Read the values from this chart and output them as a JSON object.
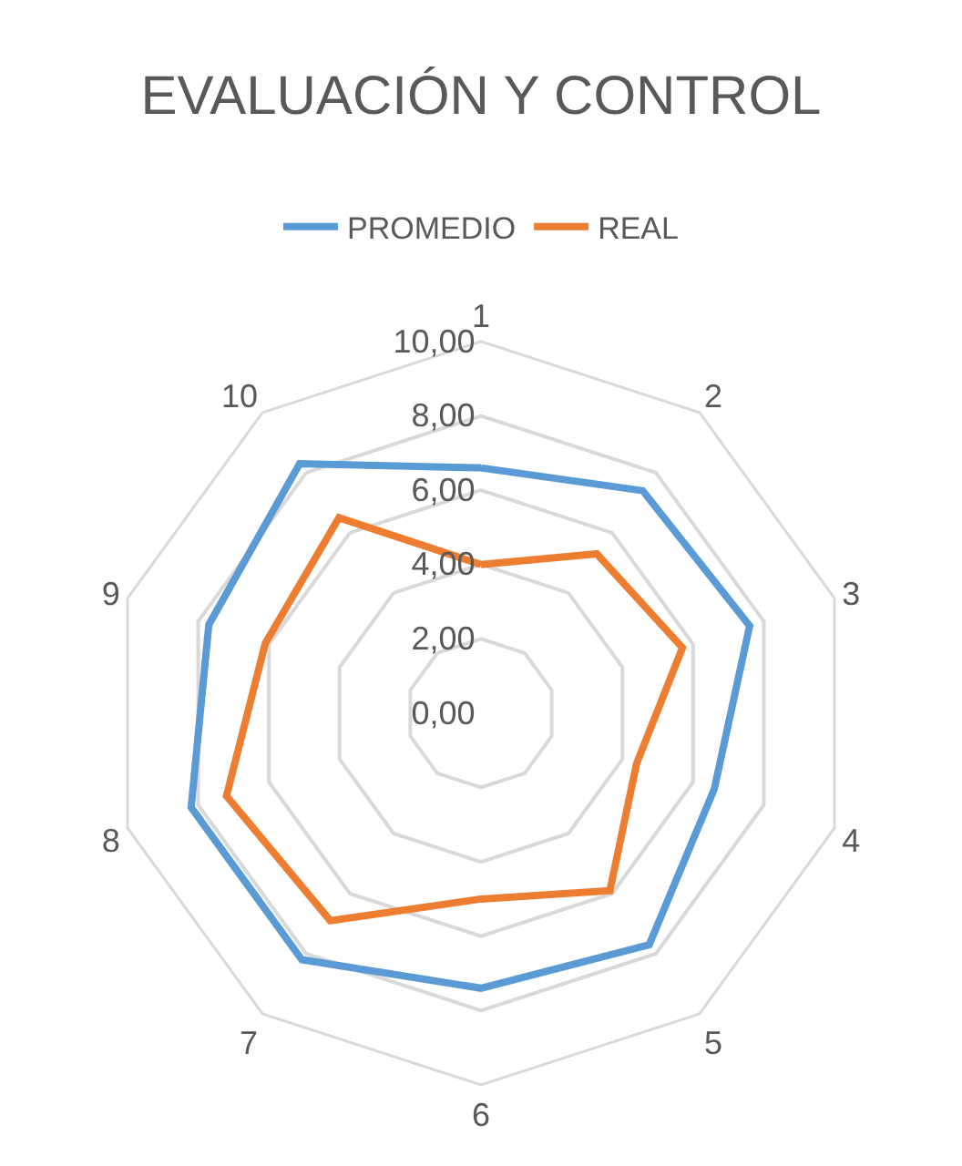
{
  "chart_data": {
    "type": "radar",
    "title": "EVALUACIÓN Y CONTROL",
    "categories": [
      "1",
      "2",
      "3",
      "4",
      "5",
      "6",
      "7",
      "8",
      "9",
      "10"
    ],
    "series": [
      {
        "name": "PROMEDIO",
        "color": "#5b9bd5",
        "values": [
          6.6,
          7.4,
          7.6,
          6.6,
          7.7,
          7.4,
          8.2,
          8.2,
          7.7,
          8.3
        ]
      },
      {
        "name": "REAL",
        "color": "#ed7d31",
        "values": [
          4.0,
          5.3,
          5.7,
          4.4,
          5.9,
          5.0,
          6.9,
          7.2,
          6.1,
          6.5
        ]
      }
    ],
    "ylim": [
      0,
      10
    ],
    "yticks": [
      {
        "value": 0,
        "label": "0,00"
      },
      {
        "value": 2,
        "label": "2,00"
      },
      {
        "value": 4,
        "label": "4,00"
      },
      {
        "value": 6,
        "label": "6,00"
      },
      {
        "value": 8,
        "label": "8,00"
      },
      {
        "value": 10,
        "label": "10,00"
      }
    ],
    "grid": "y",
    "legend": "top",
    "marker": "none",
    "line_style": "solid"
  }
}
